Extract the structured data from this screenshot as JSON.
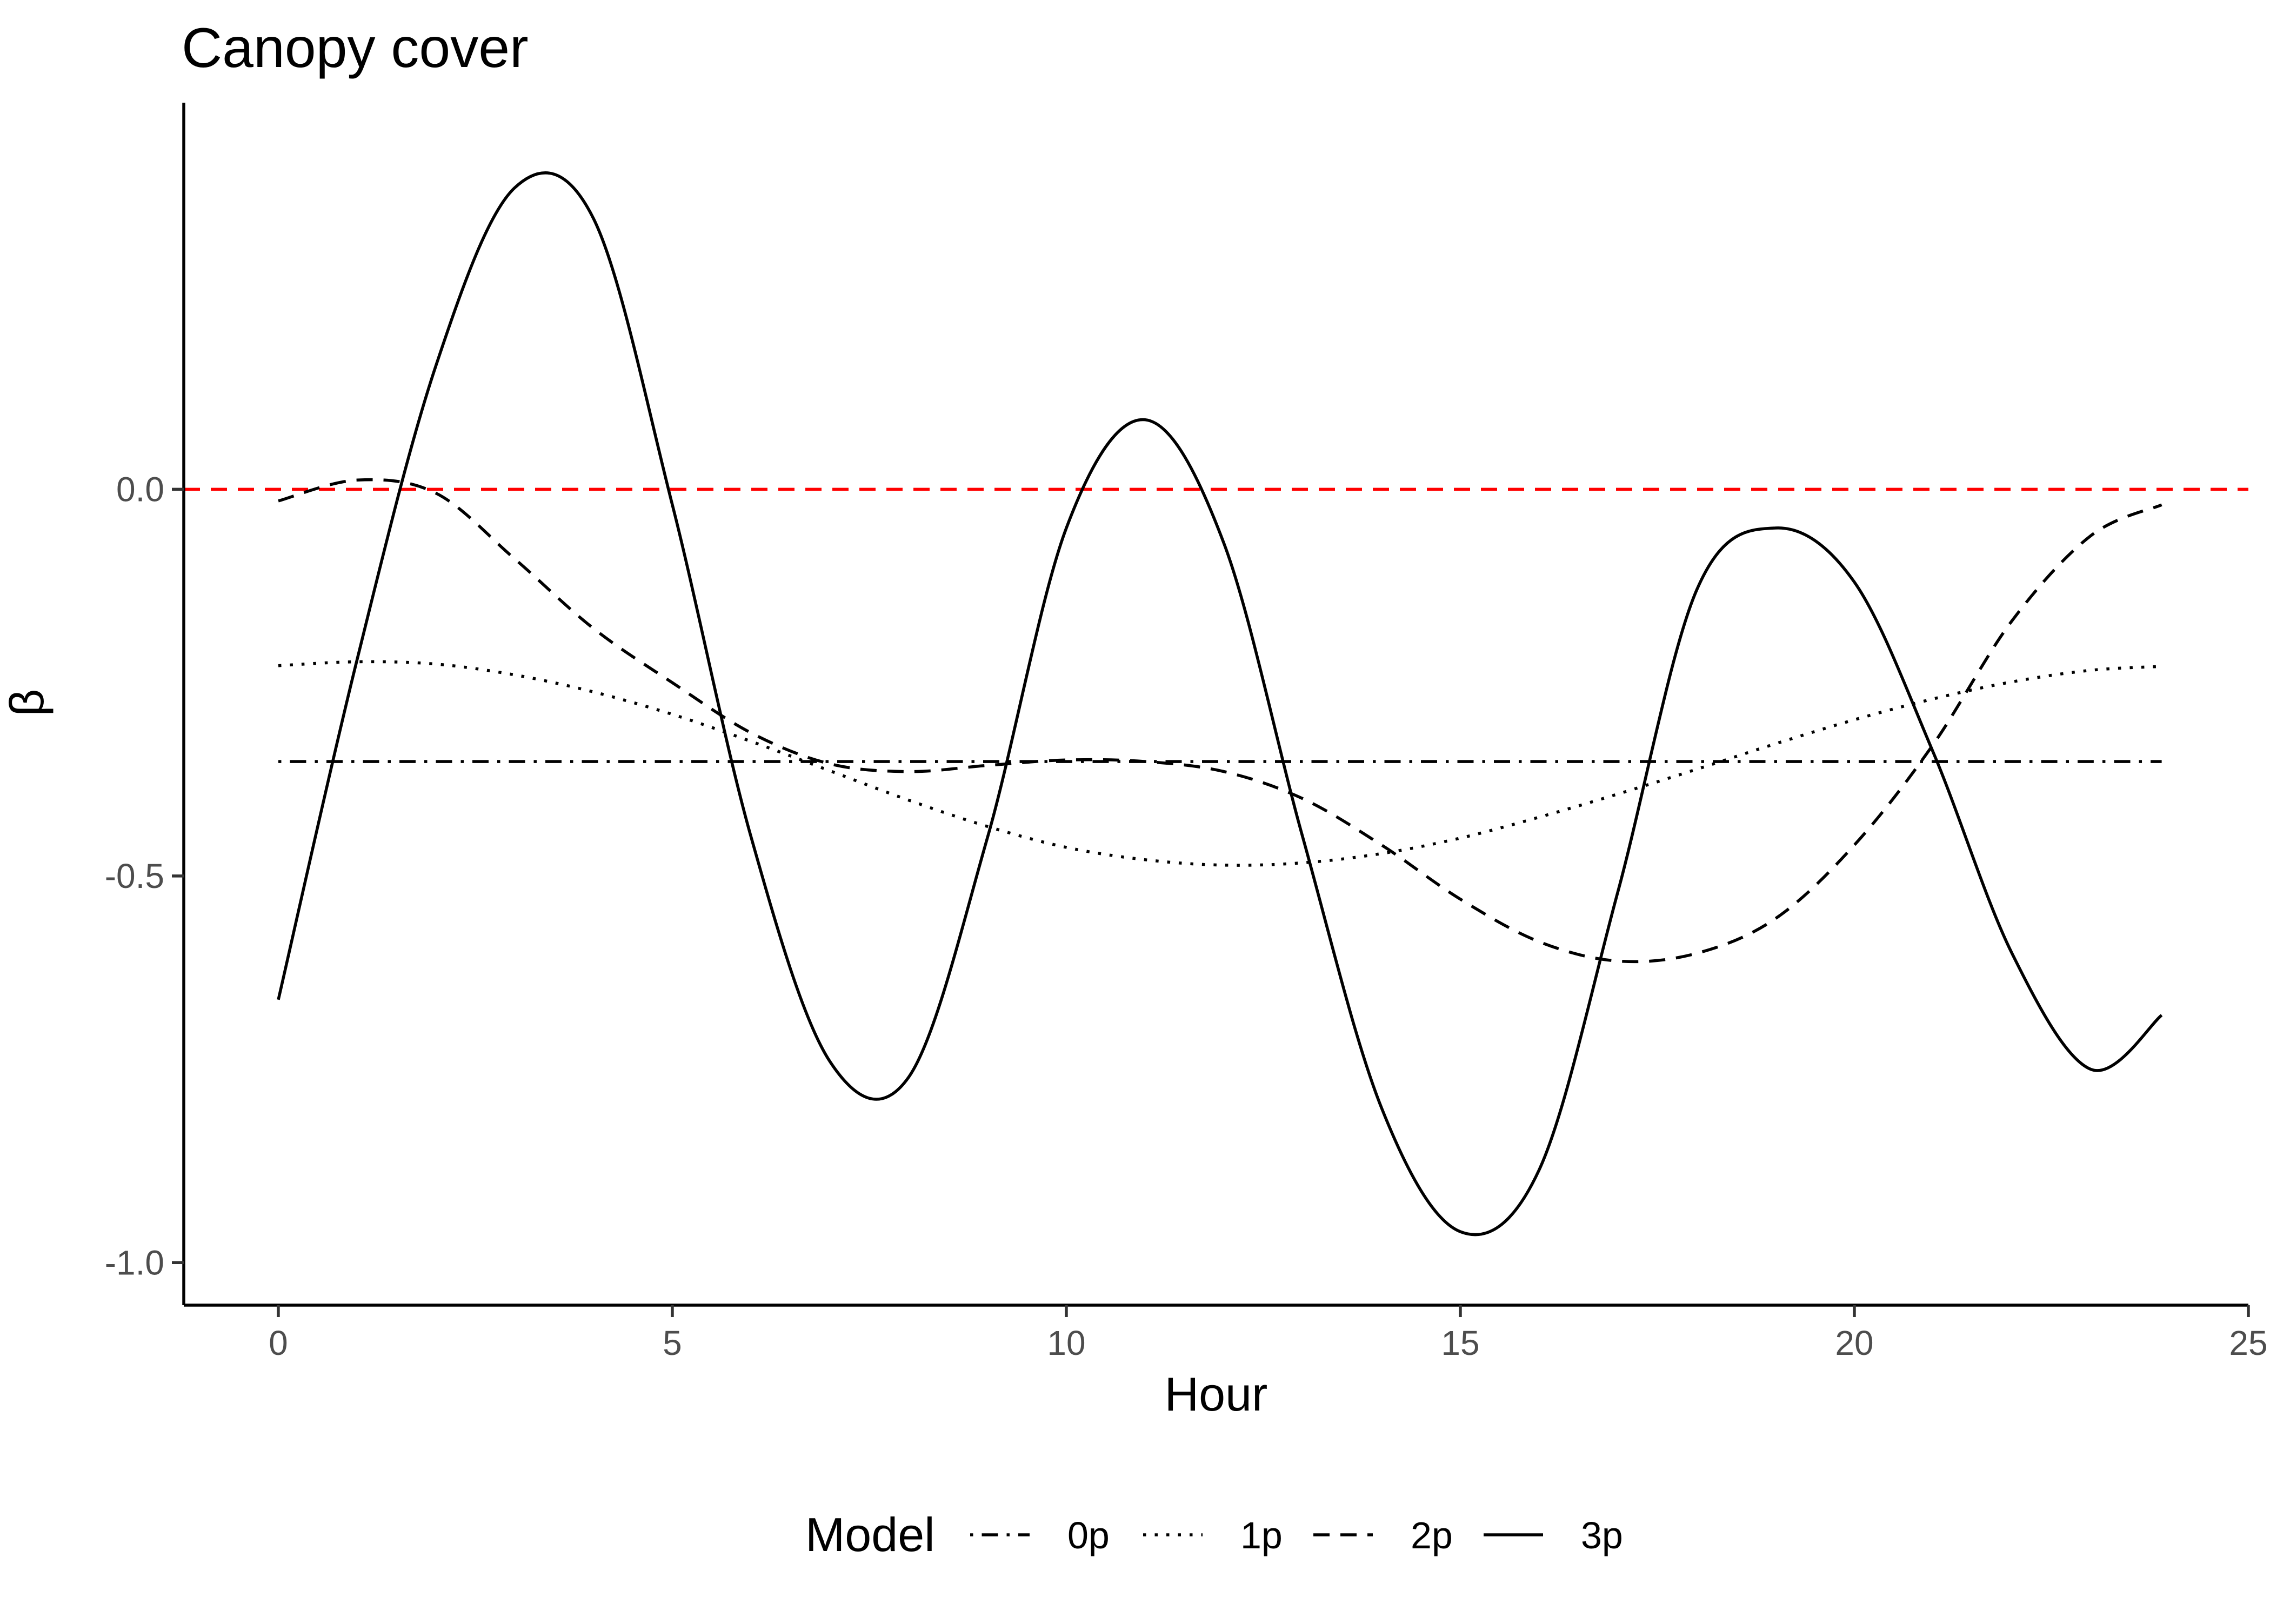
{
  "chart_data": {
    "type": "line",
    "title": "Canopy cover",
    "xlabel": "Hour",
    "ylabel": "β",
    "xlim": [
      -1.2,
      25
    ],
    "ylim": [
      -1.055,
      0.5
    ],
    "x_ticks": [
      0,
      5,
      10,
      15,
      20,
      25
    ],
    "x_tick_labels": [
      "0",
      "5",
      "10",
      "15",
      "20",
      "25"
    ],
    "y_ticks": [
      -1.0,
      -0.5,
      0.0
    ],
    "y_tick_labels": [
      "-1.0",
      "-0.5",
      "0.0"
    ],
    "grid": false,
    "legend": {
      "title": "Model",
      "position": "bottom",
      "entries": [
        "0p",
        "1p",
        "2p",
        "3p"
      ]
    },
    "reference_line": {
      "y": 0.0,
      "color": "#FF0000",
      "linetype": "dashed"
    },
    "x": [
      0,
      1,
      2,
      3,
      4,
      5,
      6,
      7,
      8,
      9,
      10,
      11,
      12,
      13,
      14,
      15,
      16,
      17,
      18,
      19,
      20,
      21,
      22,
      23,
      23.9
    ],
    "series": [
      {
        "name": "0p",
        "linetype": "dotdash",
        "color": "#000000",
        "values": [
          -0.352,
          -0.352,
          -0.352,
          -0.352,
          -0.352,
          -0.352,
          -0.352,
          -0.352,
          -0.352,
          -0.352,
          -0.352,
          -0.352,
          -0.352,
          -0.352,
          -0.352,
          -0.352,
          -0.352,
          -0.352,
          -0.352,
          -0.352,
          -0.352,
          -0.352,
          -0.352,
          -0.352,
          -0.352
        ]
      },
      {
        "name": "1p",
        "linetype": "dotted",
        "color": "#000000",
        "values": [
          -0.228,
          -0.223,
          -0.226,
          -0.24,
          -0.262,
          -0.291,
          -0.326,
          -0.364,
          -0.402,
          -0.436,
          -0.463,
          -0.479,
          -0.486,
          -0.483,
          -0.471,
          -0.451,
          -0.424,
          -0.394,
          -0.362,
          -0.329,
          -0.298,
          -0.271,
          -0.249,
          -0.234,
          -0.229
        ]
      },
      {
        "name": "2p",
        "linetype": "dashed",
        "color": "#000000",
        "values": [
          -0.015,
          0.012,
          -0.005,
          -0.09,
          -0.18,
          -0.25,
          -0.315,
          -0.355,
          -0.365,
          -0.357,
          -0.35,
          -0.352,
          -0.365,
          -0.4,
          -0.46,
          -0.53,
          -0.585,
          -0.61,
          -0.6,
          -0.555,
          -0.46,
          -0.33,
          -0.17,
          -0.06,
          -0.02
        ]
      },
      {
        "name": "3p",
        "linetype": "solid",
        "color": "#000000",
        "values": [
          -0.66,
          -0.22,
          0.16,
          0.39,
          0.35,
          -0.02,
          -0.45,
          -0.74,
          -0.76,
          -0.45,
          -0.05,
          0.09,
          -0.07,
          -0.45,
          -0.8,
          -0.96,
          -0.88,
          -0.52,
          -0.13,
          -0.05,
          -0.12,
          -0.34,
          -0.6,
          -0.75,
          -0.68
        ]
      }
    ]
  }
}
